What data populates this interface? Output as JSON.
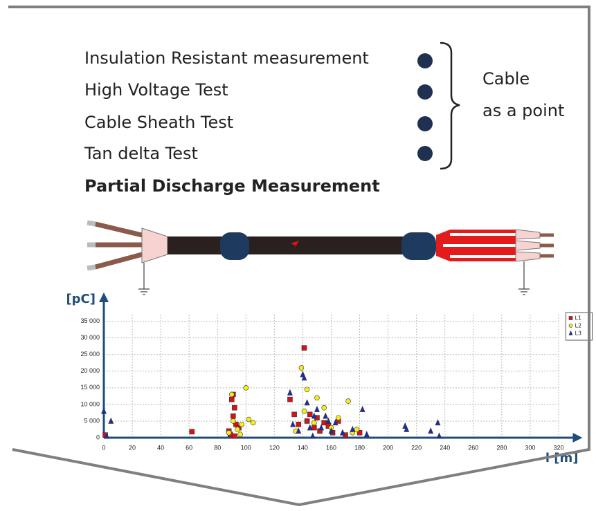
{
  "list": {
    "items": [
      "Insulation Resistant measurement",
      "High Voltage Test",
      "Cable Sheath Test",
      "Tan delta Test"
    ]
  },
  "bracket_label": [
    "Cable",
    "as a point"
  ],
  "heading": "Partial Discharge Measurement",
  "chart_data": {
    "type": "scatter",
    "y_label": "[pC]",
    "x_label": "l [m]",
    "xlim": [
      0,
      330
    ],
    "ylim": [
      0,
      37000
    ],
    "xticks": [
      0,
      20,
      40,
      60,
      80,
      100,
      120,
      140,
      160,
      180,
      200,
      220,
      240,
      260,
      280,
      300,
      320
    ],
    "yticks": [
      0,
      {
        "value": 5000,
        "label": "5 000"
      },
      {
        "value": 10000,
        "label": "10 000"
      },
      {
        "value": 15000,
        "label": "15 000"
      },
      {
        "value": 20000,
        "label": "20 000"
      },
      {
        "value": 25000,
        "label": "25 000"
      },
      {
        "value": 30000,
        "label": "30 000"
      },
      {
        "value": 35000,
        "label": "35 000"
      }
    ],
    "grid": true,
    "legend": "top-right",
    "series": [
      {
        "name": "L1",
        "color": "#d0141a",
        "marker": "square",
        "x": [
          1,
          62,
          88,
          90,
          91,
          92,
          91,
          93,
          89,
          95,
          131,
          134,
          137,
          141,
          143,
          145,
          148,
          150,
          152,
          155,
          158,
          161,
          165,
          170,
          180,
          92
        ],
        "values": [
          800,
          1800,
          2000,
          11500,
          13000,
          9000,
          6500,
          4000,
          1000,
          3000,
          11500,
          7000,
          4000,
          27000,
          5000,
          7000,
          3000,
          6000,
          2000,
          4500,
          3500,
          1500,
          5000,
          800,
          1500,
          500
        ]
      },
      {
        "name": "L2",
        "color": "#f4ef1a",
        "marker": "circle",
        "x": [
          90,
          91,
          94,
          97,
          100,
          102,
          105,
          96,
          139,
          141,
          143,
          150,
          155,
          160,
          165,
          172,
          175,
          178,
          135,
          148,
          88
        ],
        "values": [
          13000,
          5000,
          2500,
          4000,
          15000,
          5500,
          4500,
          1000,
          21000,
          8000,
          14500,
          12000,
          9000,
          3000,
          6000,
          11000,
          1500,
          2500,
          2000,
          4500,
          1500
        ]
      },
      {
        "name": "L3",
        "color": "#1a2db0",
        "marker": "triangle",
        "x": [
          0,
          5,
          2,
          131,
          140,
          141,
          143,
          145,
          148,
          150,
          153,
          156,
          160,
          163,
          168,
          175,
          182,
          185,
          212,
          213,
          230,
          235,
          236,
          133,
          137,
          147,
          158
        ],
        "values": [
          8000,
          5000,
          500,
          13500,
          19000,
          18000,
          10500,
          3000,
          6500,
          8500,
          3000,
          6500,
          2000,
          4500,
          1500,
          2500,
          8500,
          1000,
          3500,
          2500,
          2000,
          4500,
          500,
          4000,
          2000,
          500,
          5000
        ]
      }
    ]
  }
}
